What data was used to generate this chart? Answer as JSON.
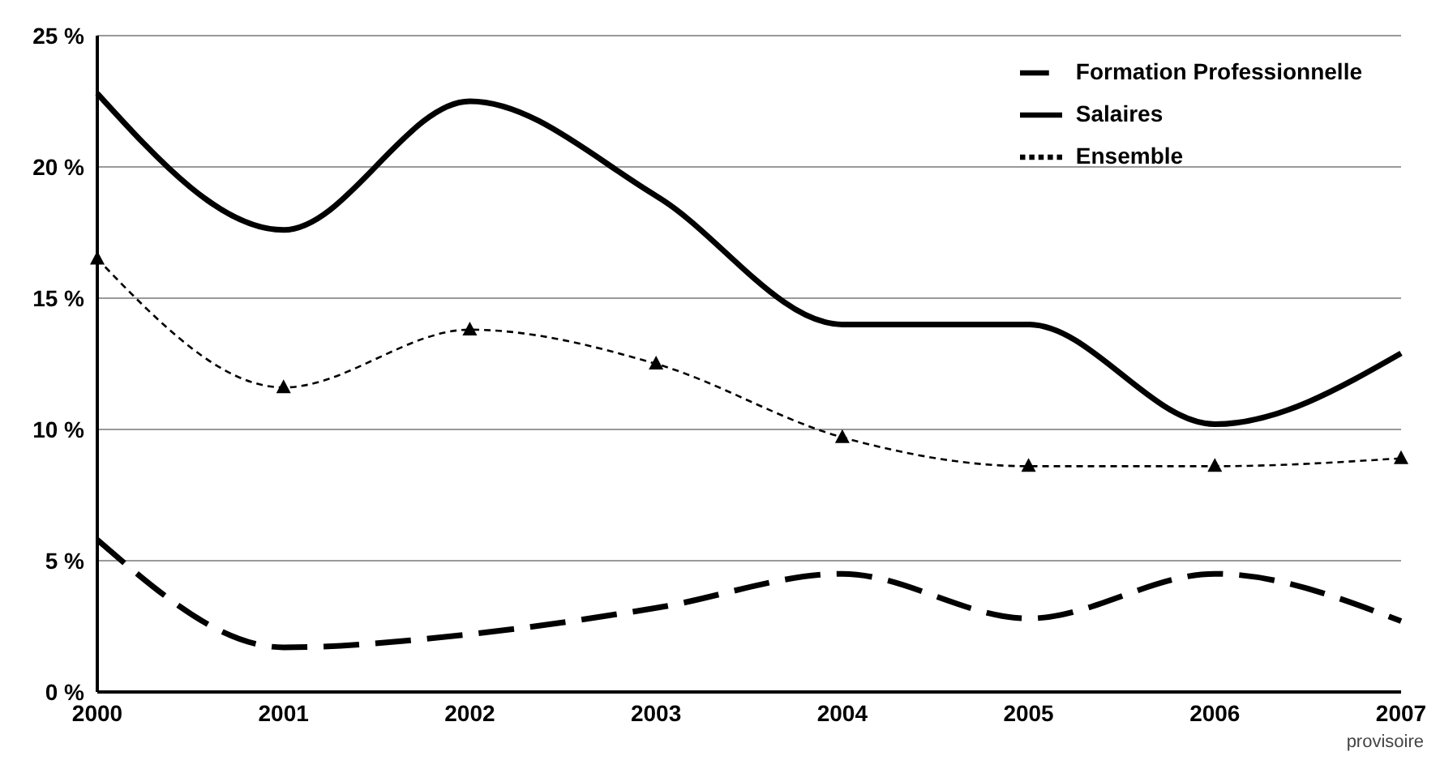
{
  "chart_data": {
    "type": "line",
    "categories": [
      "2000",
      "2001",
      "2002",
      "2003",
      "2004",
      "2005",
      "2006",
      "2007"
    ],
    "series": [
      {
        "name": "Formation Professionnelle",
        "color": "#000000",
        "line_style": "dashed",
        "marker": "none",
        "values": [
          5.8,
          1.7,
          2.2,
          3.2,
          4.5,
          2.8,
          4.5,
          2.7
        ]
      },
      {
        "name": "Salaires",
        "color": "#000000",
        "line_style": "solid",
        "marker": "none",
        "values": [
          22.8,
          17.6,
          22.5,
          18.9,
          14.0,
          14.0,
          10.2,
          12.9
        ]
      },
      {
        "name": "Ensemble",
        "color": "#000000",
        "line_style": "dotted",
        "marker": "triangle",
        "values": [
          16.5,
          11.6,
          13.8,
          12.5,
          9.7,
          8.6,
          8.6,
          8.9
        ]
      }
    ],
    "ylim": [
      0,
      25
    ],
    "yticks": [
      {
        "value": 0,
        "label": "0 %"
      },
      {
        "value": 5,
        "label": "5 %"
      },
      {
        "value": 10,
        "label": "10 %"
      },
      {
        "value": 15,
        "label": "15 %"
      },
      {
        "value": 20,
        "label": "20 %"
      },
      {
        "value": 25,
        "label": "25 %"
      }
    ],
    "grid": "y",
    "legend": "top right",
    "annotations": [
      "provisoire"
    ]
  }
}
